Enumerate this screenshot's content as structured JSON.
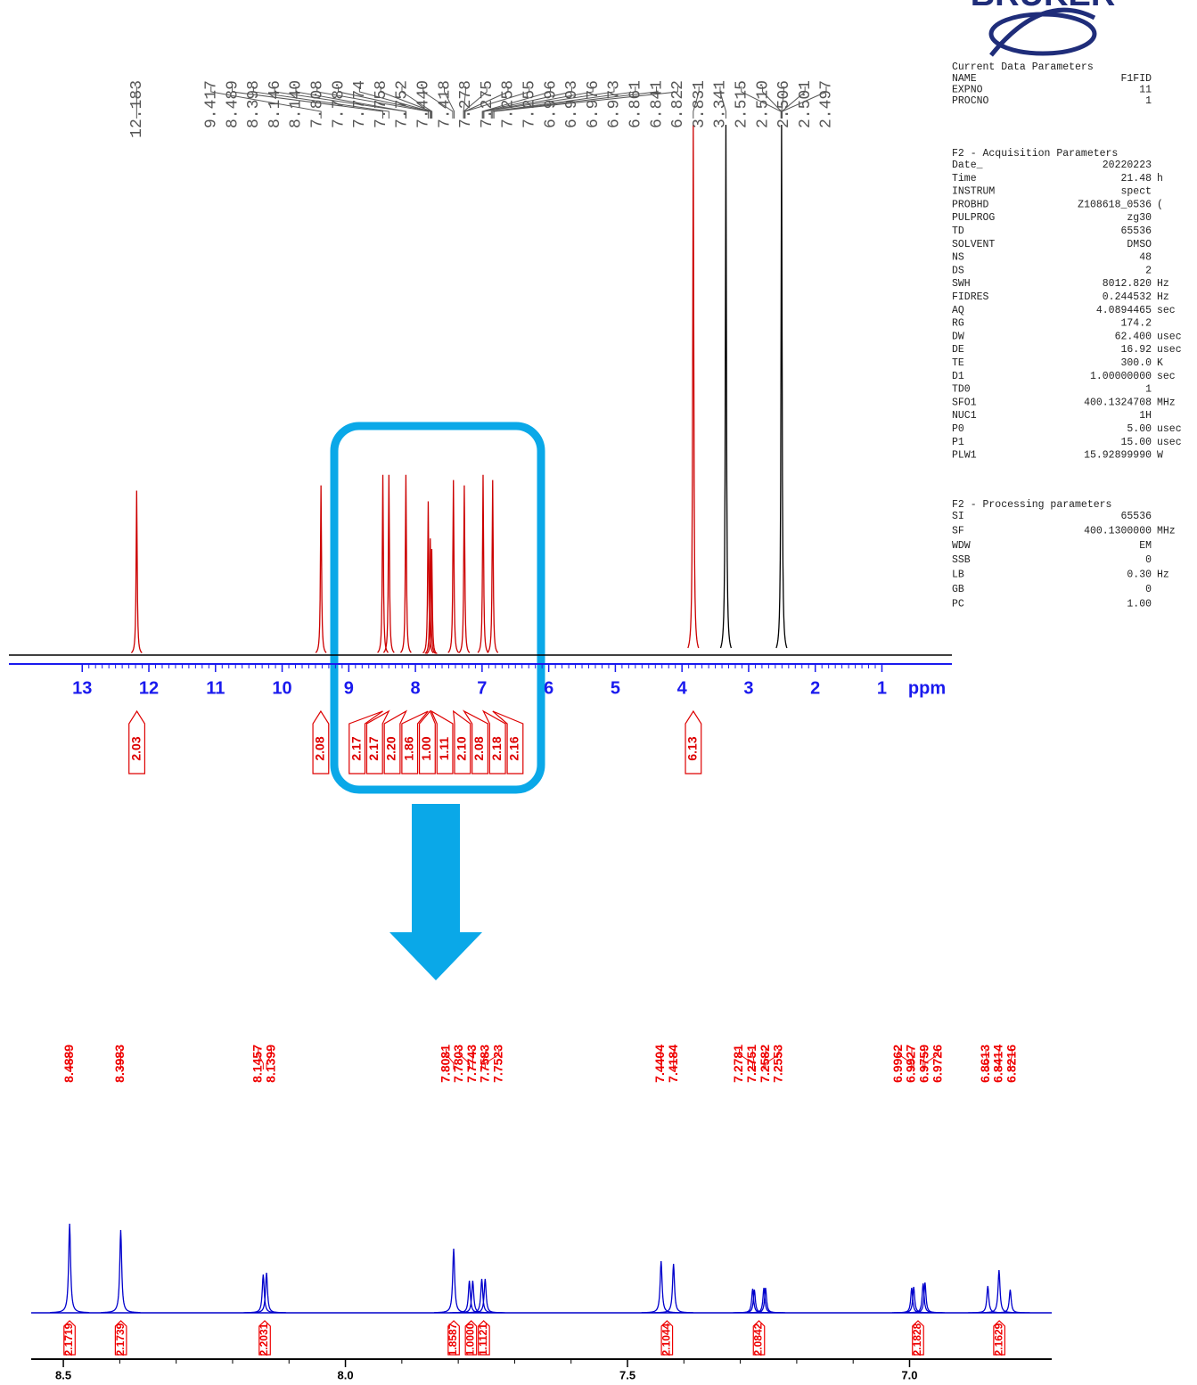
{
  "chart_data": [
    {
      "type": "spectrum",
      "x_label": "ppm",
      "xlim": [
        14.1,
        -0.05
      ],
      "xticks": [
        13,
        12,
        11,
        10,
        9,
        8,
        7,
        6,
        5,
        4,
        3,
        2,
        1
      ],
      "ylim": [
        0,
        100
      ],
      "peaks": {
        "x": [
          12.183,
          9.417,
          8.489,
          8.398,
          8.143,
          7.808,
          7.777,
          7.755,
          7.43,
          7.267,
          6.985,
          6.841,
          3.831
        ],
        "values": [
          31,
          32,
          34,
          34,
          34,
          29,
          22,
          20,
          33,
          32,
          34,
          33,
          100
        ]
      },
      "solvent_peaks": {
        "x": [
          3.341,
          2.506
        ],
        "values": [
          100,
          100
        ]
      },
      "peak_labels": [
        12.183,
        9.417,
        8.489,
        8.398,
        8.146,
        {
          "value": 8.14,
          "label": "8.140"
        },
        7.808,
        {
          "value": 7.78,
          "label": "7.780"
        },
        7.774,
        7.758,
        7.752,
        {
          "value": 7.44,
          "label": "7.440"
        },
        7.418,
        7.278,
        7.275,
        7.258,
        7.255,
        6.996,
        6.993,
        6.976,
        6.973,
        6.861,
        6.841,
        6.822,
        3.831,
        3.341,
        2.515,
        {
          "value": 2.51,
          "label": "2.510"
        },
        2.506,
        2.501,
        2.497
      ],
      "integrals": {
        "x": [
          12.18,
          9.42,
          8.49,
          8.4,
          8.14,
          7.81,
          7.78,
          7.76,
          7.43,
          7.27,
          6.98,
          6.84,
          3.83
        ],
        "values": [
          2.03,
          2.08,
          2.17,
          2.17,
          2.2,
          1.86,
          1,
          1.11,
          2.1,
          2.08,
          2.18,
          2.16,
          6.13
        ],
        "value_labels": [
          "2.03",
          "2.08",
          "2.17",
          "2.17",
          "2.20",
          "1.86",
          "1.00",
          "1.11",
          "2.10",
          "2.08",
          "2.18",
          "2.16",
          "6.13"
        ]
      },
      "colors": {
        "peaks": "#cc0000",
        "solvent": "#000000",
        "baseline": "#000000",
        "axis": "#1a1aee",
        "labels": "#555555",
        "integrals": "#dd0000"
      }
    },
    {
      "type": "spectrum",
      "xlim": [
        8.557,
        6.748
      ],
      "xticks": [
        8.5,
        {
          "value": 8,
          "label": "8.0"
        },
        7.5,
        {
          "value": 7,
          "label": "7.0"
        }
      ],
      "ylim": [
        0,
        100
      ],
      "peaks": {
        "x": [
          8.4889,
          8.3983,
          8.1457,
          8.1399,
          7.8081,
          7.7803,
          7.7743,
          7.7583,
          7.7523,
          7.4404,
          7.4184,
          7.2781,
          7.2751,
          7.2582,
          7.2553,
          6.9962,
          6.9927,
          6.9759,
          6.9726,
          6.8613,
          6.8414,
          6.8216
        ],
        "values": [
          100,
          93,
          43,
          45,
          72,
          36,
          36,
          38,
          38,
          58,
          55,
          27,
          26,
          28,
          28,
          28,
          29,
          33,
          34,
          30,
          48,
          26
        ]
      },
      "peak_labels": [
        8.4889,
        8.3983,
        8.1457,
        8.1399,
        7.8081,
        7.7803,
        7.7743,
        7.7583,
        7.7523,
        7.4404,
        7.4184,
        7.2781,
        7.2751,
        7.2582,
        7.2553,
        6.9962,
        6.9927,
        6.9759,
        6.9726,
        6.8613,
        6.8414,
        6.8216
      ],
      "integrals": {
        "x": [
          8.489,
          8.398,
          8.143,
          7.808,
          7.777,
          7.755,
          7.43,
          7.267,
          6.985,
          6.841
        ],
        "values": [
          2.1719,
          2.1739,
          2.2031,
          1.8587,
          1,
          1.1121,
          2.1044,
          2.0842,
          2.1828,
          2.1629
        ],
        "value_labels": [
          "2.1719",
          "2.1739",
          "2.2031",
          "1.8587",
          "1.0000",
          "1.1121",
          "2.1044",
          "2.0842",
          "2.1828",
          "2.1629"
        ]
      },
      "colors": {
        "peaks": "#0000cc",
        "baseline": "#0000cc",
        "axis": "#000000",
        "labels": "#ee0000",
        "integrals": "#ee0000"
      }
    }
  ],
  "parameters": {
    "logo": "BRUKER",
    "sections": [
      {
        "title": "Current Data Parameters",
        "rows": [
          [
            "NAME",
            "F1FID"
          ],
          [
            "EXPNO",
            "11"
          ],
          [
            "PROCNO",
            "1"
          ]
        ]
      },
      {
        "title": "F2 - Acquisition Parameters",
        "rows": [
          [
            "Date_",
            "20220223"
          ],
          [
            "Time",
            "21.48",
            "h"
          ],
          [
            "INSTRUM",
            "spect"
          ],
          [
            "PROBHD",
            "Z108618_0536",
            "("
          ],
          [
            "PULPROG",
            "zg30"
          ],
          [
            "TD",
            "65536"
          ],
          [
            "SOLVENT",
            "DMSO"
          ],
          [
            "NS",
            "48"
          ],
          [
            "DS",
            "2"
          ],
          [
            "SWH",
            "8012.820",
            "Hz"
          ],
          [
            "FIDRES",
            "0.244532",
            "Hz"
          ],
          [
            "AQ",
            "4.0894465",
            "sec"
          ],
          [
            "RG",
            "174.2"
          ],
          [
            "DW",
            "62.400",
            "usec"
          ],
          [
            "DE",
            "16.92",
            "usec"
          ],
          [
            "TE",
            "300.0",
            "K"
          ],
          [
            "D1",
            "1.00000000",
            "sec"
          ],
          [
            "TD0",
            "1"
          ],
          [
            "SFO1",
            "400.1324708",
            "MHz"
          ],
          [
            "NUC1",
            "1H"
          ],
          [
            "P0",
            "5.00",
            "usec"
          ],
          [
            "P1",
            "15.00",
            "usec"
          ],
          [
            "PLW1",
            "15.92899990",
            "W"
          ]
        ]
      },
      {
        "title": "F2 - Processing parameters",
        "rows": [
          [
            "SI",
            "65536"
          ],
          [
            "SF",
            "400.1300000",
            "MHz"
          ],
          [
            "WDW",
            "EM"
          ],
          [
            "SSB",
            "0"
          ],
          [
            "LB",
            "0.30",
            "Hz"
          ],
          [
            "GB",
            "0"
          ],
          [
            "PC",
            "1.00"
          ]
        ]
      }
    ]
  }
}
